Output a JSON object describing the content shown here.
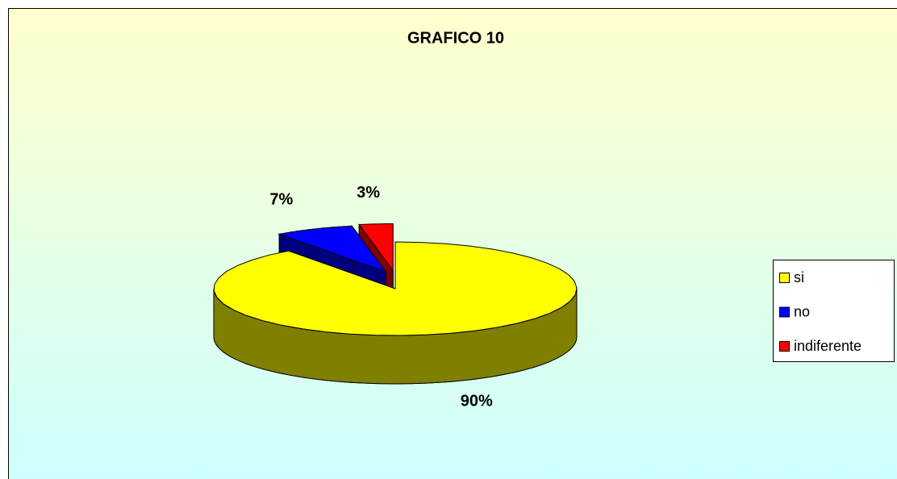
{
  "chart_data": {
    "type": "pie",
    "title": "GRAFICO 10",
    "categories": [
      "si",
      "no",
      "indiferente"
    ],
    "values": [
      90,
      7,
      3
    ],
    "value_labels": [
      "90%",
      "7%",
      "3%"
    ],
    "colors": [
      "#ffff00",
      "#0000ff",
      "#ff0000"
    ],
    "legend": "right"
  }
}
